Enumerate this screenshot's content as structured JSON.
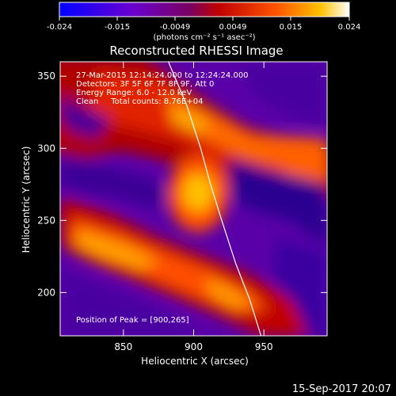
{
  "colorbar": {
    "ticks": [
      "-0.024",
      "-0.015",
      "-0.0049",
      "0.0049",
      "0.015",
      "0.024"
    ],
    "unit_label": "(photons cm⁻² s⁻¹ asec⁻²)",
    "range": [
      -0.024,
      0.024
    ],
    "colors": [
      "#0000ff",
      "#7000c8",
      "#8a0050",
      "#c80000",
      "#ff5000",
      "#ffb000",
      "#ffffff"
    ]
  },
  "chart_data": {
    "type": "heatmap",
    "title": "Reconstructed RHESSI Image",
    "xlabel": "Heliocentric X (arcsec)",
    "ylabel": "Heliocentric Y (arcsec)",
    "xlim": [
      805,
      995
    ],
    "ylim": [
      170,
      360
    ],
    "xticks": [
      850,
      900,
      950
    ],
    "yticks": [
      200,
      250,
      300,
      350
    ],
    "annotations": {
      "time_range": "27-Mar-2015 12:14:24.000 to 12:24:24.000",
      "detectors": "Detectors: 3F 5F 6F 7F 8F 9F, Att 0",
      "energy": "Energy Range: 6.0 - 12.0 keV",
      "clean": "Clean     Total counts: 8.76E+04",
      "peak": "Position of Peak = [900,265]"
    },
    "peak": {
      "x": 900,
      "y": 265
    },
    "limb_curve": [
      [
        882,
        360
      ],
      [
        895,
        330
      ],
      [
        905,
        300
      ],
      [
        912,
        275
      ],
      [
        920,
        250
      ],
      [
        930,
        220
      ],
      [
        940,
        195
      ],
      [
        948,
        170
      ]
    ]
  },
  "footer": {
    "date": "15-Sep-2017 20:07"
  }
}
